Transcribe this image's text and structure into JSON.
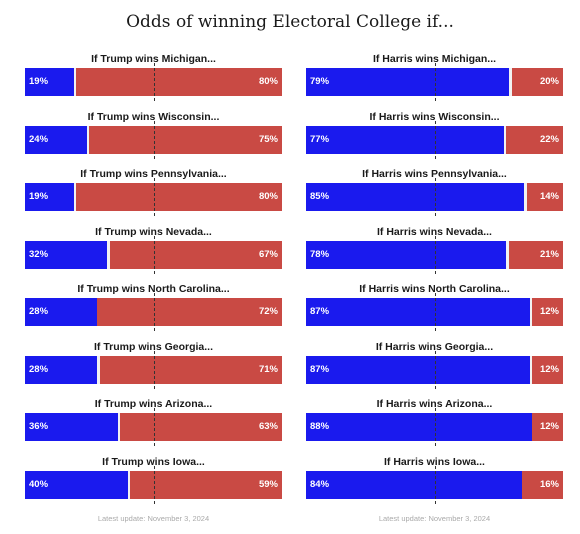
{
  "title": "Odds of winning Electoral College if...",
  "colors": {
    "harris": "#1a1aee",
    "trump": "#c94a44"
  },
  "left_column": {
    "footer": "Latest update: November 3, 2024",
    "panels": [
      {
        "title": "If Trump wins Michigan...",
        "dem_label": "19%",
        "rep_label": "80%"
      },
      {
        "title": "If Trump wins Wisconsin...",
        "dem_label": "24%",
        "rep_label": "75%"
      },
      {
        "title": "If Trump wins Pennsylvania...",
        "dem_label": "19%",
        "rep_label": "80%"
      },
      {
        "title": "If Trump wins Nevada...",
        "dem_label": "32%",
        "rep_label": "67%"
      },
      {
        "title": "If Trump wins North Carolina...",
        "dem_label": "28%",
        "rep_label": "72%"
      },
      {
        "title": "If Trump wins Georgia...",
        "dem_label": "28%",
        "rep_label": "71%"
      },
      {
        "title": "If Trump wins Arizona...",
        "dem_label": "36%",
        "rep_label": "63%"
      },
      {
        "title": "If Trump wins Iowa...",
        "dem_label": "40%",
        "rep_label": "59%"
      }
    ]
  },
  "right_column": {
    "footer": "Latest update: November 3, 2024",
    "panels": [
      {
        "title": "If Harris wins Michigan...",
        "dem_label": "79%",
        "rep_label": "20%"
      },
      {
        "title": "If Harris wins Wisconsin...",
        "dem_label": "77%",
        "rep_label": "22%"
      },
      {
        "title": "If Harris wins Pennsylvania...",
        "dem_label": "85%",
        "rep_label": "14%"
      },
      {
        "title": "If Harris wins Nevada...",
        "dem_label": "78%",
        "rep_label": "21%"
      },
      {
        "title": "If Harris wins North Carolina...",
        "dem_label": "87%",
        "rep_label": "12%"
      },
      {
        "title": "If Harris wins Georgia...",
        "dem_label": "87%",
        "rep_label": "12%"
      },
      {
        "title": "If Harris wins Arizona...",
        "dem_label": "88%",
        "rep_label": "12%"
      },
      {
        "title": "If Harris wins Iowa...",
        "dem_label": "84%",
        "rep_label": "16%"
      }
    ]
  },
  "chart_data": [
    {
      "type": "bar",
      "orientation": "horizontal-stacked",
      "categories": [
        "If Trump wins Michigan...",
        "If Trump wins Wisconsin...",
        "If Trump wins Pennsylvania...",
        "If Trump wins Nevada...",
        "If Trump wins North Carolina...",
        "If Trump wins Georgia...",
        "If Trump wins Arizona...",
        "If Trump wins Iowa..."
      ],
      "series": [
        {
          "values": [
            19,
            24,
            19,
            32,
            28,
            28,
            36,
            40
          ]
        },
        {
          "values": [
            80,
            75,
            80,
            67,
            72,
            71,
            63,
            59
          ]
        }
      ],
      "title": "Odds of winning Electoral College if...",
      "xlim": [
        0,
        100
      ],
      "reference_line": 50
    },
    {
      "type": "bar",
      "orientation": "horizontal-stacked",
      "categories": [
        "If Harris wins Michigan...",
        "If Harris wins Wisconsin...",
        "If Harris wins Pennsylvania...",
        "If Harris wins Nevada...",
        "If Harris wins North Carolina...",
        "If Harris wins Georgia...",
        "If Harris wins Arizona...",
        "If Harris wins Iowa..."
      ],
      "series": [
        {
          "values": [
            79,
            77,
            85,
            78,
            87,
            87,
            88,
            84
          ]
        },
        {
          "values": [
            20,
            22,
            14,
            21,
            12,
            12,
            12,
            16
          ]
        }
      ],
      "title": "Odds of winning Electoral College if...",
      "xlim": [
        0,
        100
      ],
      "reference_line": 50
    }
  ]
}
